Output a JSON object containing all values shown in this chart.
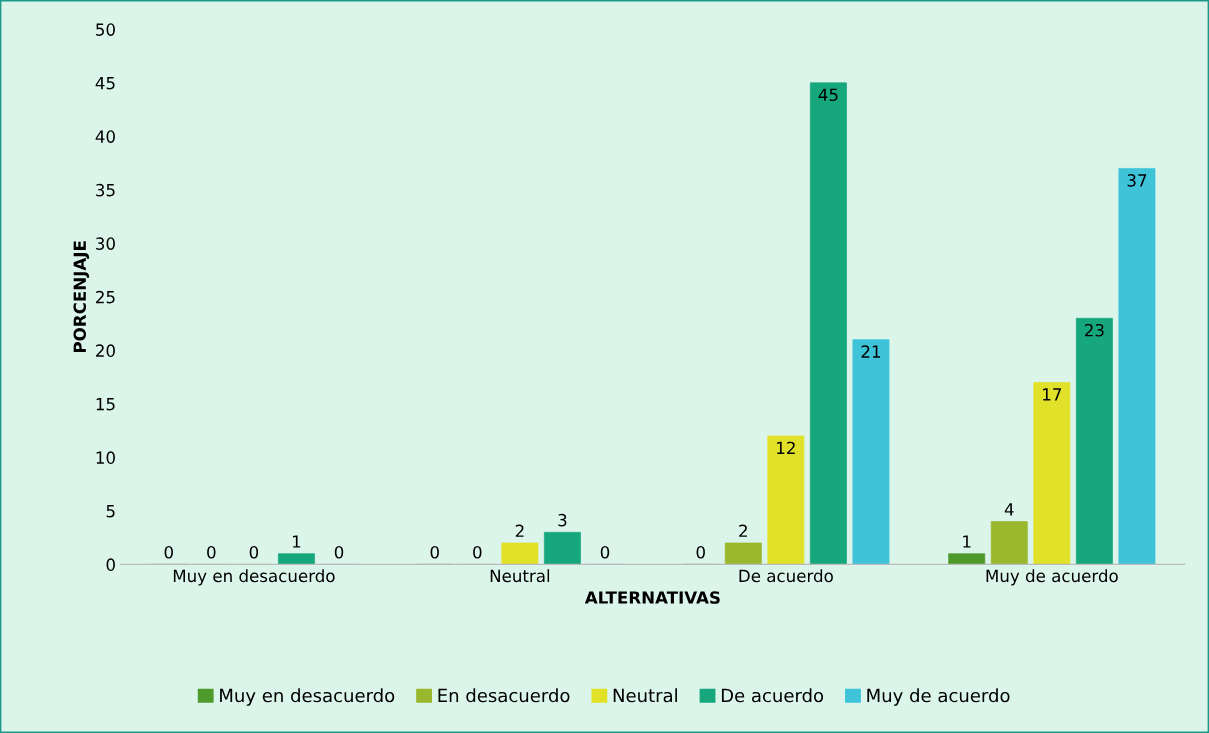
{
  "chart_data": {
    "type": "bar",
    "xlabel": "ALTERNATIVAS",
    "ylabel": "PORCENJAJE",
    "categories": [
      "Muy en desacuerdo",
      "Neutral",
      "De acuerdo",
      "Muy de acuerdo"
    ],
    "series": [
      {
        "name": "Muy en desacuerdo",
        "color": "#4f9a2c",
        "values": [
          0,
          0,
          0,
          1
        ]
      },
      {
        "name": "En desacuerdo",
        "color": "#9ab82e",
        "values": [
          0,
          0,
          2,
          4
        ]
      },
      {
        "name": "Neutral",
        "color": "#e2e12a",
        "values": [
          0,
          2,
          12,
          17
        ]
      },
      {
        "name": "De acuerdo",
        "color": "#16a87c",
        "values": [
          1,
          3,
          45,
          23
        ]
      },
      {
        "name": "Muy de acuerdo",
        "color": "#3ec3d9",
        "values": [
          0,
          0,
          21,
          37
        ]
      }
    ],
    "ylim": [
      0,
      50
    ],
    "yticks": [
      0,
      5,
      10,
      15,
      20,
      25,
      30,
      35,
      40,
      45,
      50
    ],
    "data_labels": true,
    "grid": false,
    "legend": "bottom"
  }
}
